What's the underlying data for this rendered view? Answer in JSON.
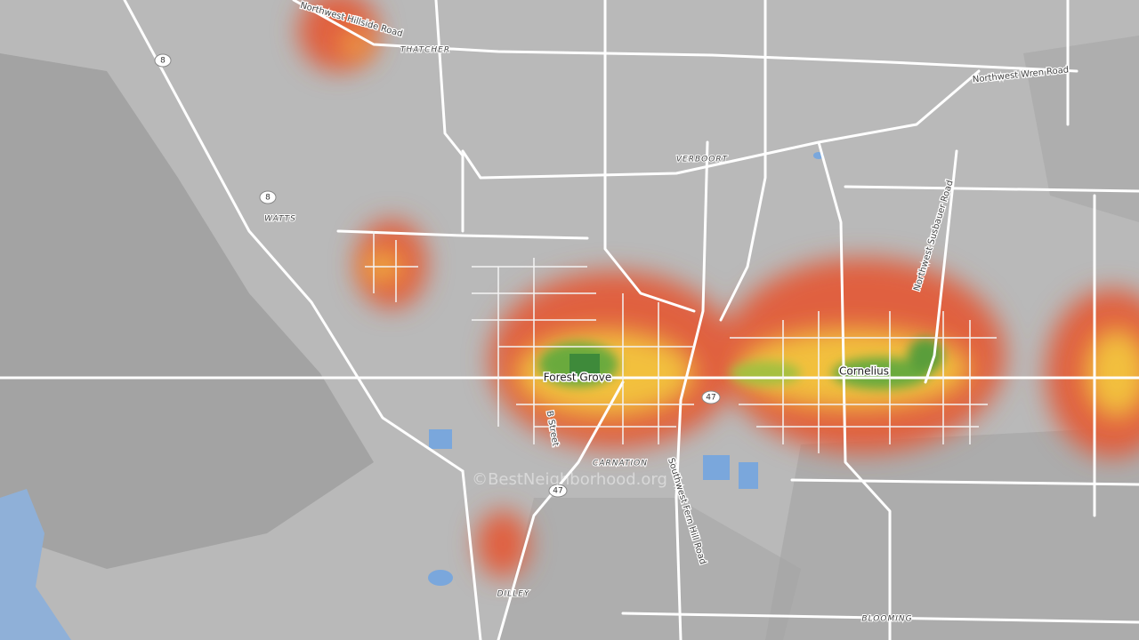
{
  "map": {
    "places": [
      "THATCHER",
      "WATTS",
      "VERBOORT",
      "CARNATION",
      "DILLEY",
      "BLOOMING"
    ],
    "cities": [
      "Forest Grove",
      "Cornelius"
    ],
    "roads": [
      "Northwest Hillside Road",
      "Northwest Wren Road",
      "Northwest Susbauer Road",
      "B Street",
      "Southwest Fern Hill Road"
    ],
    "route_shields": [
      "8",
      "8",
      "47",
      "47"
    ],
    "watermark": "©BestNeighborhood.org"
  }
}
